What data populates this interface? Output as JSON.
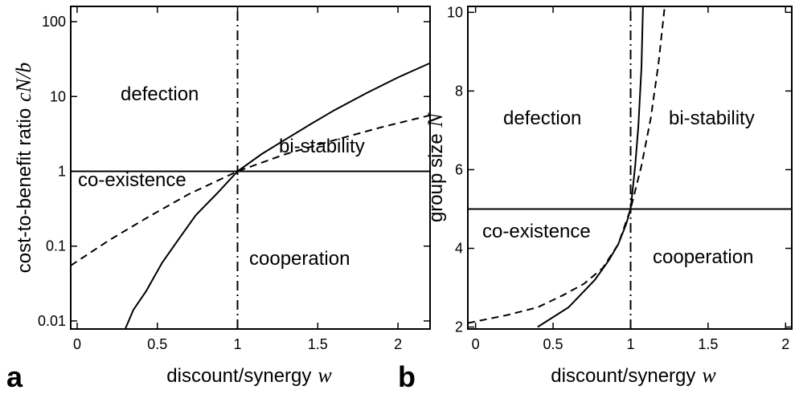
{
  "chart_data": [
    {
      "type": "line",
      "panel": "a",
      "yscale": "log",
      "xlabel": "discount/synergy",
      "xlabel_symbol": "w",
      "ylabel": "cost-to-benefit ratio",
      "ylabel_symbol": "cN/b",
      "xlim": [
        -0.04,
        2.2
      ],
      "ylim": [
        0.0078,
        160
      ],
      "xticks": [
        0,
        0.5,
        1,
        1.5,
        2
      ],
      "yticks": [
        0.01,
        0.1,
        1,
        10,
        100
      ],
      "annotations": [
        "defection",
        "co-existence",
        "bi-stability",
        "cooperation"
      ],
      "series": [
        {
          "color": "#000",
          "dash": "solid",
          "x": [
            0.3,
            0.35,
            0.43,
            0.53,
            0.64,
            0.74,
            0.87,
            1,
            1.15,
            1.29,
            1.45,
            1.6,
            1.8,
            2,
            2.2
          ],
          "values": [
            0.0078,
            0.014,
            0.025,
            0.06,
            0.13,
            0.26,
            0.5,
            1,
            1.7,
            2.6,
            4.2,
            6.5,
            11,
            18,
            28
          ]
        },
        {
          "color": "#000",
          "dash": "dashed",
          "x": [
            -0.04,
            0.2,
            0.45,
            0.7,
            1,
            1.3,
            1.6,
            1.9,
            2.2
          ],
          "values": [
            0.055,
            0.12,
            0.25,
            0.5,
            1,
            1.7,
            2.6,
            3.9,
            5.6
          ]
        },
        {
          "color": "#000",
          "dash": "solid",
          "x": [
            -0.04,
            2.2
          ],
          "values": [
            1,
            1
          ]
        },
        {
          "color": "#000",
          "dash": "dashdot",
          "x": [
            1,
            1
          ],
          "values": [
            0.0078,
            160
          ]
        }
      ]
    },
    {
      "type": "line",
      "panel": "b",
      "yscale": "linear",
      "xlabel": "discount/synergy",
      "xlabel_symbol": "w",
      "ylabel": "group size",
      "ylabel_symbol": "N",
      "xlim": [
        -0.05,
        2.04
      ],
      "ylim": [
        1.95,
        10.15
      ],
      "xticks": [
        0,
        0.5,
        1,
        1.5,
        2
      ],
      "yticks": [
        2,
        4,
        6,
        8,
        10
      ],
      "annotations": [
        "defection",
        "bi-stability",
        "co-existence",
        "cooperation"
      ],
      "series": [
        {
          "color": "#000",
          "dash": "solid",
          "x": [
            0.4,
            0.6,
            0.77,
            0.86,
            0.92,
            0.97,
            1,
            1.03,
            1.05,
            1.07,
            1.08
          ],
          "values": [
            2,
            2.5,
            3.2,
            3.7,
            4.1,
            4.6,
            5,
            6.1,
            7.1,
            8.6,
            10.15
          ]
        },
        {
          "color": "#000",
          "dash": "dashed",
          "x": [
            -0.05,
            0.2,
            0.4,
            0.56,
            0.7,
            0.82,
            0.92,
            1,
            1.07,
            1.13,
            1.18,
            1.22
          ],
          "values": [
            2.1,
            2.3,
            2.5,
            2.8,
            3.1,
            3.5,
            4.1,
            5,
            6.1,
            7.3,
            8.7,
            10.15
          ]
        },
        {
          "color": "#000",
          "dash": "solid",
          "x": [
            -0.05,
            2.04
          ],
          "values": [
            5,
            5
          ]
        },
        {
          "color": "#000",
          "dash": "dashdot",
          "x": [
            1,
            1
          ],
          "values": [
            1.95,
            10.15
          ]
        }
      ]
    }
  ]
}
